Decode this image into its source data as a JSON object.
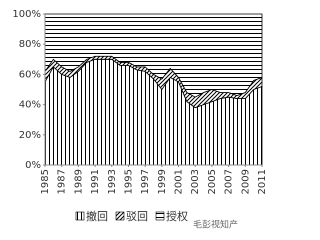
{
  "chart_data": {
    "type": "stacked-area",
    "x": [
      1985,
      1986,
      1987,
      1988,
      1989,
      1990,
      1991,
      1992,
      1993,
      1994,
      1995,
      1996,
      1997,
      1998,
      1999,
      2000,
      2001,
      2002,
      2003,
      2004,
      2005,
      2006,
      2007,
      2008,
      2009,
      2010,
      2011
    ],
    "xlim": [
      1985,
      2011
    ],
    "xticks": [
      1985,
      1987,
      1989,
      1991,
      1993,
      1995,
      1997,
      1999,
      2001,
      2003,
      2005,
      2007,
      2009,
      2011
    ],
    "ylim": [
      0,
      100
    ],
    "yticks": [
      {
        "value": 0,
        "label": "0%"
      },
      {
        "value": 20,
        "label": "20%"
      },
      {
        "value": 40,
        "label": "40%"
      },
      {
        "value": 60,
        "label": "60%"
      },
      {
        "value": 80,
        "label": "80%"
      },
      {
        "value": 100,
        "label": "100%"
      }
    ],
    "series": [
      {
        "name": "撤回",
        "color": "#000000",
        "pattern": "vertical",
        "values": [
          55,
          65,
          60,
          58,
          62,
          68,
          70,
          70,
          70,
          66,
          66,
          63,
          62,
          57,
          50,
          58,
          55,
          42,
          38,
          40,
          42,
          44,
          45,
          44,
          44,
          50,
          52
        ]
      },
      {
        "name": "驳回",
        "color": "#000000",
        "pattern": "diagonal",
        "values": [
          7,
          5,
          5,
          4,
          3,
          2,
          2,
          2,
          2,
          2,
          2,
          2,
          3,
          3,
          7,
          6,
          3,
          6,
          7,
          8,
          8,
          4,
          3,
          2,
          4,
          6,
          6
        ]
      },
      {
        "name": "授权",
        "color": "#000000",
        "pattern": "horizontal",
        "values": [
          38,
          30,
          35,
          38,
          35,
          30,
          28,
          28,
          28,
          32,
          32,
          35,
          35,
          40,
          43,
          36,
          42,
          52,
          55,
          52,
          50,
          52,
          52,
          54,
          52,
          44,
          42
        ]
      }
    ],
    "legend": "bottom",
    "watermark": "毛彭视知产"
  }
}
